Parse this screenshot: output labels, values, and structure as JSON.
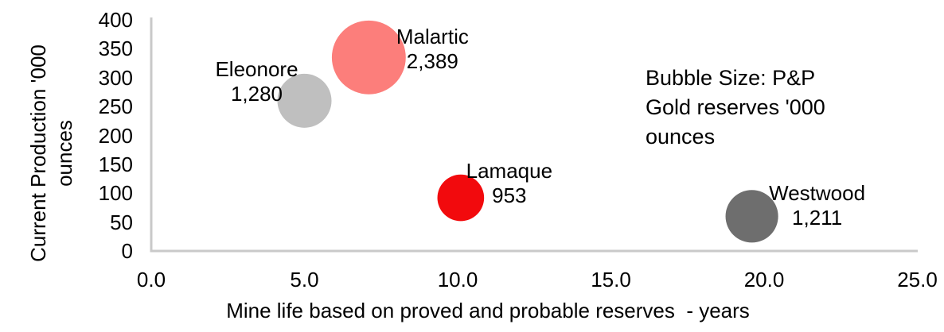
{
  "page": {
    "background": "#FFFFFF",
    "text_color": "#000000"
  },
  "chart_data": {
    "type": "scatter",
    "subtype": "bubble",
    "title": "",
    "xlabel": "Mine life based on proved and probable reserves  - years",
    "ylabel": "Current Production '000 ounces",
    "ylabel_lines": [
      "Current Production '000",
      "ounces"
    ],
    "xlim": [
      0,
      25
    ],
    "ylim": [
      0,
      400
    ],
    "grid": false,
    "axis_color": "#C9C9C9",
    "x_ticks": [
      {
        "value": 0,
        "label": "0.0"
      },
      {
        "value": 5,
        "label": "5.0"
      },
      {
        "value": 10,
        "label": "10.0"
      },
      {
        "value": 15,
        "label": "15.0"
      },
      {
        "value": 20,
        "label": "20.0"
      },
      {
        "value": 25,
        "label": "25.0"
      }
    ],
    "y_ticks": [
      {
        "value": 0,
        "label": "0"
      },
      {
        "value": 50,
        "label": "50"
      },
      {
        "value": 100,
        "label": "100"
      },
      {
        "value": 150,
        "label": "150"
      },
      {
        "value": 200,
        "label": "200"
      },
      {
        "value": 250,
        "label": "250"
      },
      {
        "value": 300,
        "label": "300"
      },
      {
        "value": 350,
        "label": "350"
      },
      {
        "value": 400,
        "label": "400"
      }
    ],
    "bubble_radius_scale": 0.95,
    "series": [
      {
        "name": "Eleonore",
        "x": 5.0,
        "y": 260,
        "size": 1280,
        "size_label": "1,280",
        "color": "#BFBFBF",
        "label_offset": {
          "dx": -60,
          "dy": -24
        }
      },
      {
        "name": "Malartic",
        "x": 7.1,
        "y": 335,
        "size": 2389,
        "size_label": "2,389",
        "color": "#FC7E7B",
        "label_offset": {
          "dx": 80,
          "dy": -10
        }
      },
      {
        "name": "Lamaque",
        "x": 10.1,
        "y": 92,
        "size": 953,
        "size_label": "953",
        "color": "#F20A0D",
        "label_offset": {
          "dx": 61,
          "dy": -18
        }
      },
      {
        "name": "Westwood",
        "x": 19.6,
        "y": 60,
        "size": 1211,
        "size_label": "1,211",
        "color": "#6E6E6E",
        "label_offset": {
          "dx": 82,
          "dy": -13
        }
      }
    ],
    "annotation": {
      "lines": [
        "Bubble Size: P&P",
        "Gold reserves '000",
        "ounces"
      ]
    },
    "legend_position": "none"
  }
}
